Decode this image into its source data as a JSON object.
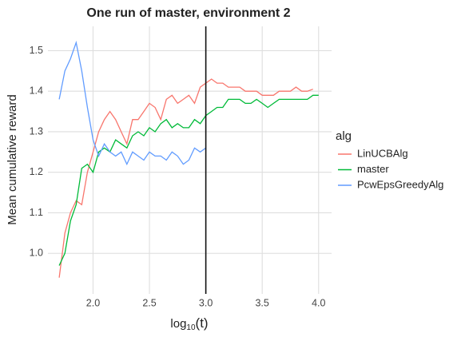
{
  "chart_data": {
    "type": "line",
    "title": "One run of master, environment 2",
    "x_label": {
      "base": "log",
      "sub": "10",
      "arg": "(t)"
    },
    "y_label": "Mean cumulative reward",
    "legend_title": "alg",
    "legend_position": "right",
    "grid": true,
    "vline": 3,
    "xlim": [
      1.6,
      4.115
    ],
    "ylim": [
      0.9,
      1.56
    ],
    "xticks": [
      {
        "value": 2,
        "label": "2.0"
      },
      {
        "value": 2.5,
        "label": "2.5"
      },
      {
        "value": 3,
        "label": "3.0"
      },
      {
        "value": 3.5,
        "label": "3.5"
      },
      {
        "value": 4,
        "label": "4.0"
      }
    ],
    "yticks": [
      {
        "value": 1,
        "label": "1.0"
      },
      {
        "value": 1.1,
        "label": "1.1"
      },
      {
        "value": 1.2,
        "label": "1.2"
      },
      {
        "value": 1.3,
        "label": "1.3"
      },
      {
        "value": 1.4,
        "label": "1.4"
      },
      {
        "value": 1.5,
        "label": "1.5"
      }
    ],
    "x": [
      1.7,
      1.75,
      1.8,
      1.85,
      1.9,
      1.95,
      2.0,
      2.05,
      2.1,
      2.15,
      2.2,
      2.25,
      2.3,
      2.35,
      2.4,
      2.45,
      2.5,
      2.55,
      2.6,
      2.65,
      2.7,
      2.75,
      2.8,
      2.85,
      2.9,
      2.95,
      3.0,
      3.05,
      3.1,
      3.15,
      3.2,
      3.25,
      3.3,
      3.35,
      3.4,
      3.45,
      3.5,
      3.55,
      3.6,
      3.65,
      3.7,
      3.75,
      3.8,
      3.85,
      3.9,
      3.95,
      4.0
    ],
    "series": [
      {
        "name": "LinUCBAlg",
        "color": "#f8766d",
        "values": [
          0.94,
          1.05,
          1.1,
          1.13,
          1.12,
          1.2,
          1.25,
          1.3,
          1.33,
          1.35,
          1.33,
          1.3,
          1.27,
          1.33,
          1.33,
          1.35,
          1.37,
          1.36,
          1.33,
          1.38,
          1.39,
          1.37,
          1.38,
          1.39,
          1.37,
          1.41,
          1.42,
          1.43,
          1.42,
          1.42,
          1.41,
          1.41,
          1.41,
          1.4,
          1.4,
          1.4,
          1.39,
          1.39,
          1.39,
          1.4,
          1.4,
          1.4,
          1.41,
          1.4,
          1.4,
          1.405,
          null
        ]
      },
      {
        "name": "master",
        "color": "#00ba38",
        "values": [
          0.97,
          1.0,
          1.08,
          1.12,
          1.21,
          1.22,
          1.2,
          1.25,
          1.26,
          1.25,
          1.28,
          1.27,
          1.26,
          1.29,
          1.3,
          1.29,
          1.31,
          1.3,
          1.32,
          1.33,
          1.31,
          1.32,
          1.31,
          1.31,
          1.33,
          1.32,
          1.34,
          1.35,
          1.36,
          1.36,
          1.38,
          1.38,
          1.38,
          1.37,
          1.37,
          1.38,
          1.37,
          1.36,
          1.37,
          1.38,
          1.38,
          1.38,
          1.38,
          1.38,
          1.38,
          1.39,
          1.39
        ]
      },
      {
        "name": "PcwEpsGreedyAlg",
        "color": "#619cff",
        "values": [
          1.38,
          1.45,
          1.48,
          1.52,
          1.45,
          1.36,
          1.28,
          1.24,
          1.27,
          1.25,
          1.24,
          1.25,
          1.22,
          1.25,
          1.24,
          1.23,
          1.25,
          1.24,
          1.24,
          1.23,
          1.25,
          1.24,
          1.22,
          1.23,
          1.26,
          1.25,
          1.26,
          null,
          null,
          null,
          null,
          null,
          null,
          null,
          null,
          null,
          null,
          null,
          null,
          null,
          null,
          null,
          null,
          null,
          null,
          null,
          null
        ]
      }
    ]
  }
}
